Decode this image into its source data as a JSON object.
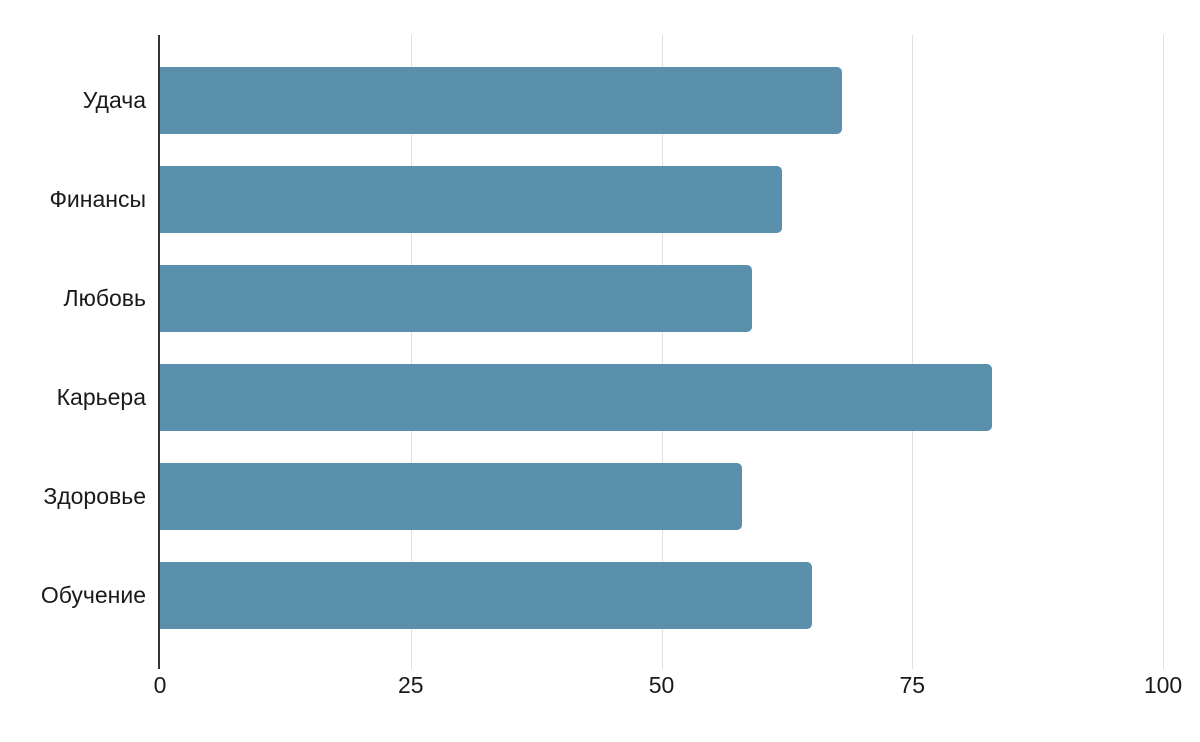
{
  "chart_data": {
    "type": "bar",
    "orientation": "horizontal",
    "title": "",
    "categories": [
      "Удача",
      "Финансы",
      "Любовь",
      "Карьера",
      "Здоровье",
      "Обучение"
    ],
    "values": [
      68,
      62,
      59,
      83,
      58,
      65
    ],
    "xlabel": "",
    "ylabel": "",
    "xlim": [
      0,
      100
    ],
    "x_ticks": [
      0,
      25,
      50,
      75,
      100
    ],
    "grid": true,
    "legend": "none",
    "colors": {
      "bar": "#5a90ac",
      "axis_line": "#333333",
      "gridline": "#e0e0e0",
      "text": "#1a1a1a",
      "background": "#ffffff"
    }
  }
}
